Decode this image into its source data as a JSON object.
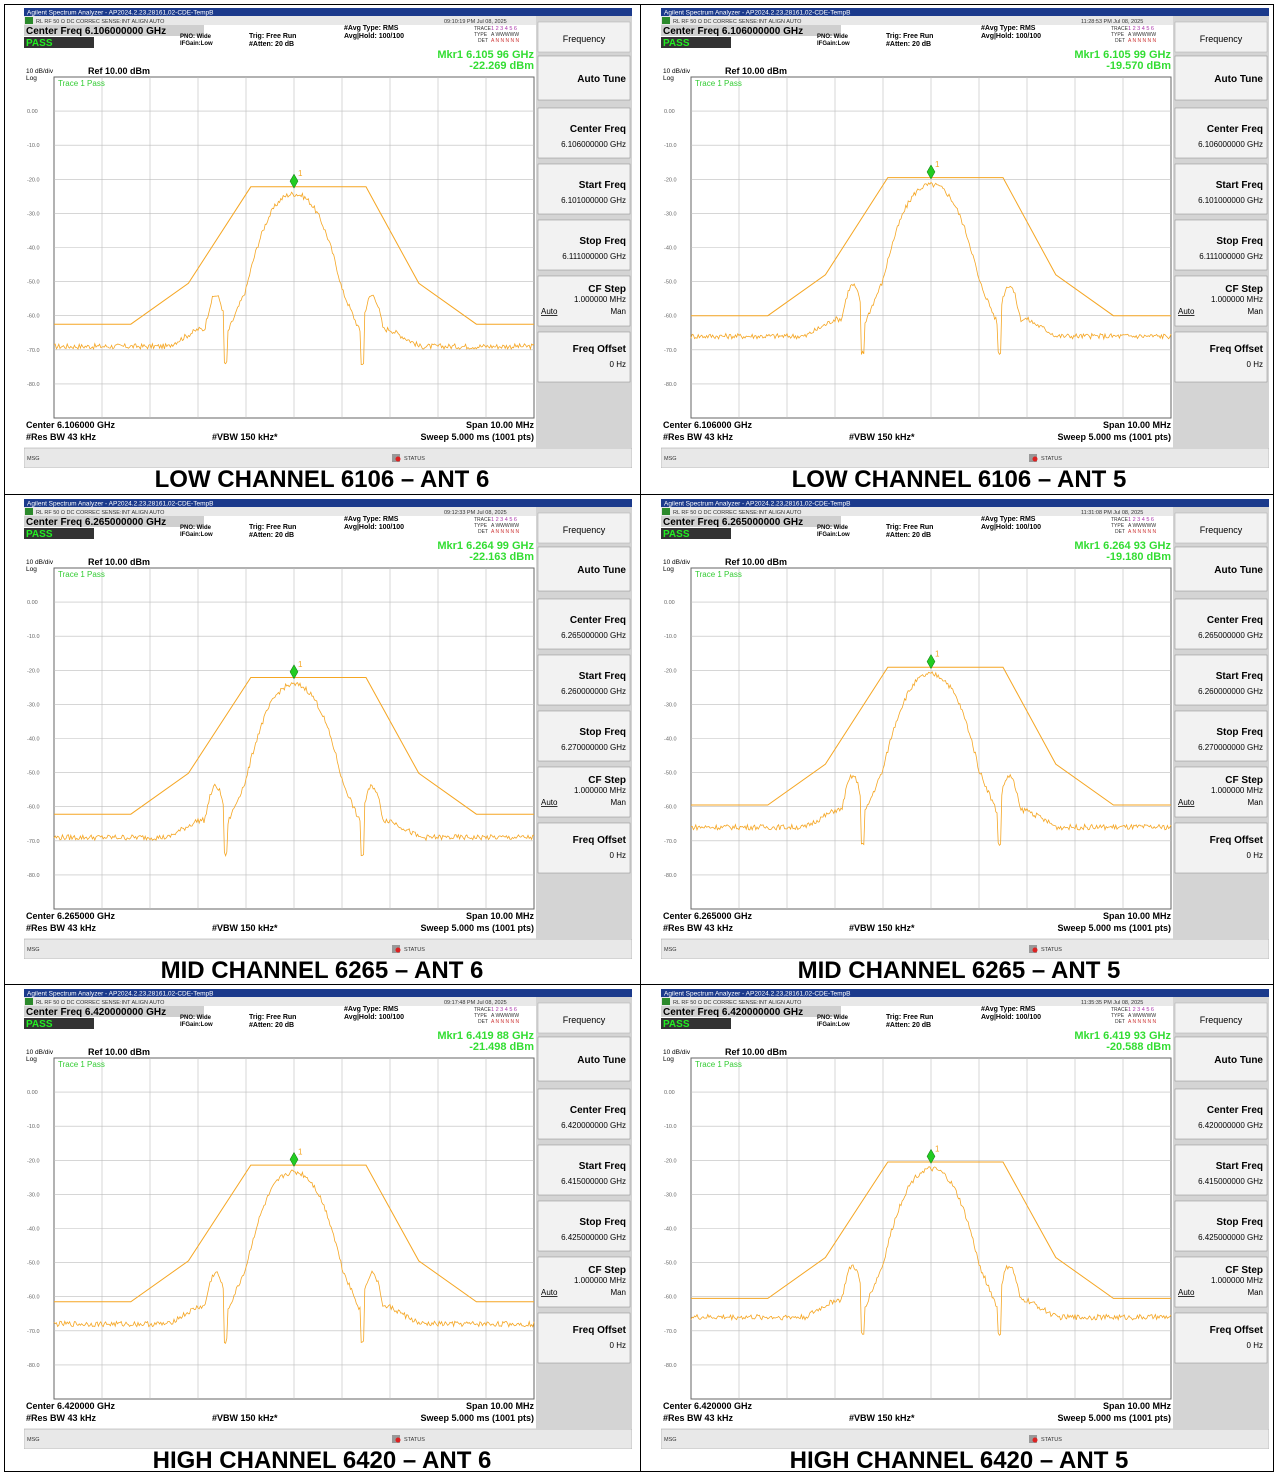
{
  "common": {
    "app_title": "Agilent Spectrum Analyzer - AP2024.2.23,28161,02-CDE-TempB",
    "status_line": "RL    RF   50 Ω  DC   CORREC         SENSE:INT              ALIGN AUTO",
    "pno": "PNO: Wide",
    "ifgain": "IFGain:Low",
    "trig": "Trig: Free Run",
    "atten": "#Atten: 20 dB",
    "avg_type": "#Avg Type: RMS",
    "avg_hold": "Avg|Hold: 100/100",
    "trace_label": "TRACE",
    "type_label": "TYPE",
    "det_label": "DET",
    "trace_nums": "1 2 3 4 5 6",
    "type_val": "A WWWWW",
    "det_val": "A N N N N N",
    "pass": "PASS",
    "scale": "10 dB/div",
    "ref": "Ref 10.00 dBm",
    "log": "Log",
    "trace_pass": "Trace 1 Pass",
    "span": "Span 10.00 MHz",
    "res_bw": "#Res BW 43 kHz",
    "vbw": "#VBW 150 kHz*",
    "sweep": "Sweep  5.000 ms (1001 pts)",
    "msg": "MSG",
    "status": "STATUS",
    "marker_num": "1",
    "y_ticks": [
      "0.00",
      "-10.0",
      "-20.0",
      "-30.0",
      "-40.0",
      "-50.0",
      "-60.0",
      "-70.0",
      "-80.0"
    ],
    "softkeys": {
      "menu": "Frequency",
      "auto_tune": "Auto Tune",
      "center_freq": "Center Freq",
      "start_freq": "Start Freq",
      "stop_freq": "Stop Freq",
      "cf_step": "CF Step",
      "cf_step_val": "1.000000 MHz",
      "auto": "Auto",
      "man": "Man",
      "freq_offset": "Freq Offset",
      "freq_offset_val": "0 Hz"
    },
    "colors": {
      "trace": "#f5a623",
      "marker": "#22cc22",
      "mkr_text": "#33dd33",
      "pass": "#22ee22"
    }
  },
  "panels": [
    {
      "time": "09:10:19 PM Jul 08, 2025",
      "center_freq_title": "Center Freq 6.106000000 GHz",
      "mkr": "Mkr1 6.105 96 GHz",
      "mkr_level": "-22.269 dBm",
      "center": "Center 6.106000 GHz",
      "sk_center": "6.106000000 GHz",
      "sk_start": "6.101000000 GHz",
      "sk_stop": "6.111000000 GHz",
      "caption": "LOW CHANNEL 6106 – ANT 6",
      "mask_top_db": -22.2,
      "floor_db": -69,
      "peak_db": -22.3,
      "mask_floor_db": -62.5
    },
    {
      "time": "11:28:53 PM Jul 08, 2025",
      "center_freq_title": "Center Freq 6.106000000 GHz",
      "mkr": "Mkr1 6.105 99 GHz",
      "mkr_level": "-19.570 dBm",
      "center": "Center 6.106000 GHz",
      "sk_center": "6.106000000 GHz",
      "sk_start": "6.101000000 GHz",
      "sk_stop": "6.111000000 GHz",
      "caption": "LOW CHANNEL 6106 – ANT 5",
      "mask_top_db": -19.5,
      "floor_db": -66,
      "peak_db": -19.6,
      "mask_floor_db": -60
    },
    {
      "time": "09:12:33 PM Jul 08, 2025",
      "center_freq_title": "Center Freq 6.265000000 GHz",
      "mkr": "Mkr1 6.264 99 GHz",
      "mkr_level": "-22.163 dBm",
      "center": "Center 6.265000 GHz",
      "sk_center": "6.265000000 GHz",
      "sk_start": "6.260000000 GHz",
      "sk_stop": "6.270000000 GHz",
      "caption": "MID CHANNEL 6265 – ANT 6",
      "mask_top_db": -22.1,
      "floor_db": -69,
      "peak_db": -22.2,
      "mask_floor_db": -62.2
    },
    {
      "time": "11:31:08 PM Jul 08, 2025",
      "center_freq_title": "Center Freq 6.265000000 GHz",
      "mkr": "Mkr1 6.264 93 GHz",
      "mkr_level": "-19.180 dBm",
      "center": "Center 6.265000 GHz",
      "sk_center": "6.265000000 GHz",
      "sk_start": "6.260000000 GHz",
      "sk_stop": "6.270000000 GHz",
      "caption": "MID CHANNEL 6265 – ANT 5",
      "mask_top_db": -19.1,
      "floor_db": -66,
      "peak_db": -19.2,
      "mask_floor_db": -59.5
    },
    {
      "time": "09:17:48 PM Jul 08, 2025",
      "center_freq_title": "Center Freq 6.420000000 GHz",
      "mkr": "Mkr1 6.419 88 GHz",
      "mkr_level": "-21.498 dBm",
      "center": "Center 6.420000 GHz",
      "sk_center": "6.420000000 GHz",
      "sk_start": "6.415000000 GHz",
      "sk_stop": "6.425000000 GHz",
      "caption": "HIGH CHANNEL 6420 – ANT 6",
      "mask_top_db": -21.4,
      "floor_db": -68,
      "peak_db": -21.5,
      "mask_floor_db": -61.5
    },
    {
      "time": "11:35:35 PM Jul 08, 2025",
      "center_freq_title": "Center Freq 6.420000000 GHz",
      "mkr": "Mkr1 6.419 93 GHz",
      "mkr_level": "-20.588 dBm",
      "center": "Center 6.420000 GHz",
      "sk_center": "6.420000000 GHz",
      "sk_start": "6.415000000 GHz",
      "sk_stop": "6.425000000 GHz",
      "caption": "HIGH CHANNEL 6420 – ANT 5",
      "mask_top_db": -20.5,
      "floor_db": -66,
      "peak_db": -20.6,
      "mask_floor_db": -60.5
    }
  ]
}
